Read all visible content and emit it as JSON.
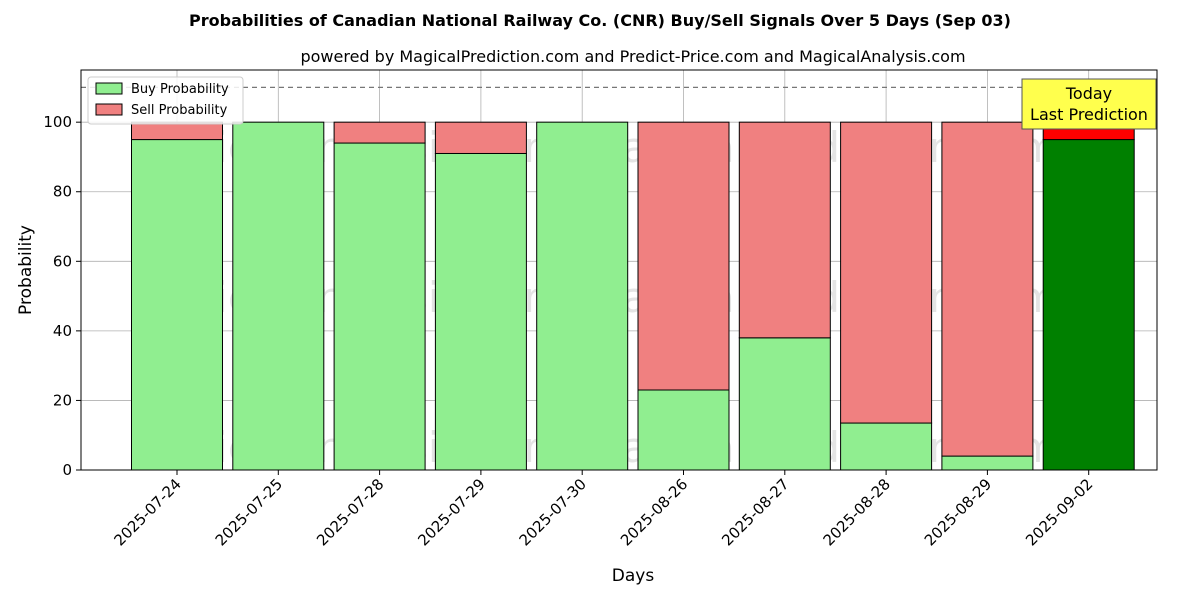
{
  "title": "Probabilities of Canadian National Railway Co. (CNR) Buy/Sell Signals Over 5 Days (Sep 03)",
  "subtitle": "powered by MagicalPrediction.com and Predict-Price.com and MagicalAnalysis.com",
  "colors": {
    "buy": "#90ee90",
    "sell": "#f08080",
    "buy_today": "#008000",
    "sell_today": "#ff0000",
    "annotation_bg": "#ffff4d"
  },
  "watermarks": [
    "MagicalAnalysis.com",
    "MagicalPrediction.com"
  ],
  "chart_data": {
    "type": "bar",
    "stacked": true,
    "xlabel": "Days",
    "ylabel": "Probability",
    "ylim": [
      0,
      115
    ],
    "yticks": [
      0,
      20,
      40,
      60,
      80,
      100
    ],
    "grid": true,
    "reference_line": 110,
    "legend_position": "top-left",
    "categories": [
      "2025-07-24",
      "2025-07-25",
      "2025-07-28",
      "2025-07-29",
      "2025-07-30",
      "2025-08-26",
      "2025-08-27",
      "2025-08-28",
      "2025-08-29",
      "2025-09-02"
    ],
    "series": [
      {
        "name": "Buy Probability",
        "values": [
          95,
          100,
          94,
          91,
          100,
          23,
          38,
          13.5,
          4,
          95
        ]
      },
      {
        "name": "Sell Probability",
        "values": [
          5,
          0,
          6,
          9,
          0,
          77,
          62,
          86.5,
          96,
          5
        ]
      }
    ],
    "annotation": {
      "lines": [
        "Today",
        "Last Prediction"
      ],
      "category": "2025-09-02"
    }
  }
}
